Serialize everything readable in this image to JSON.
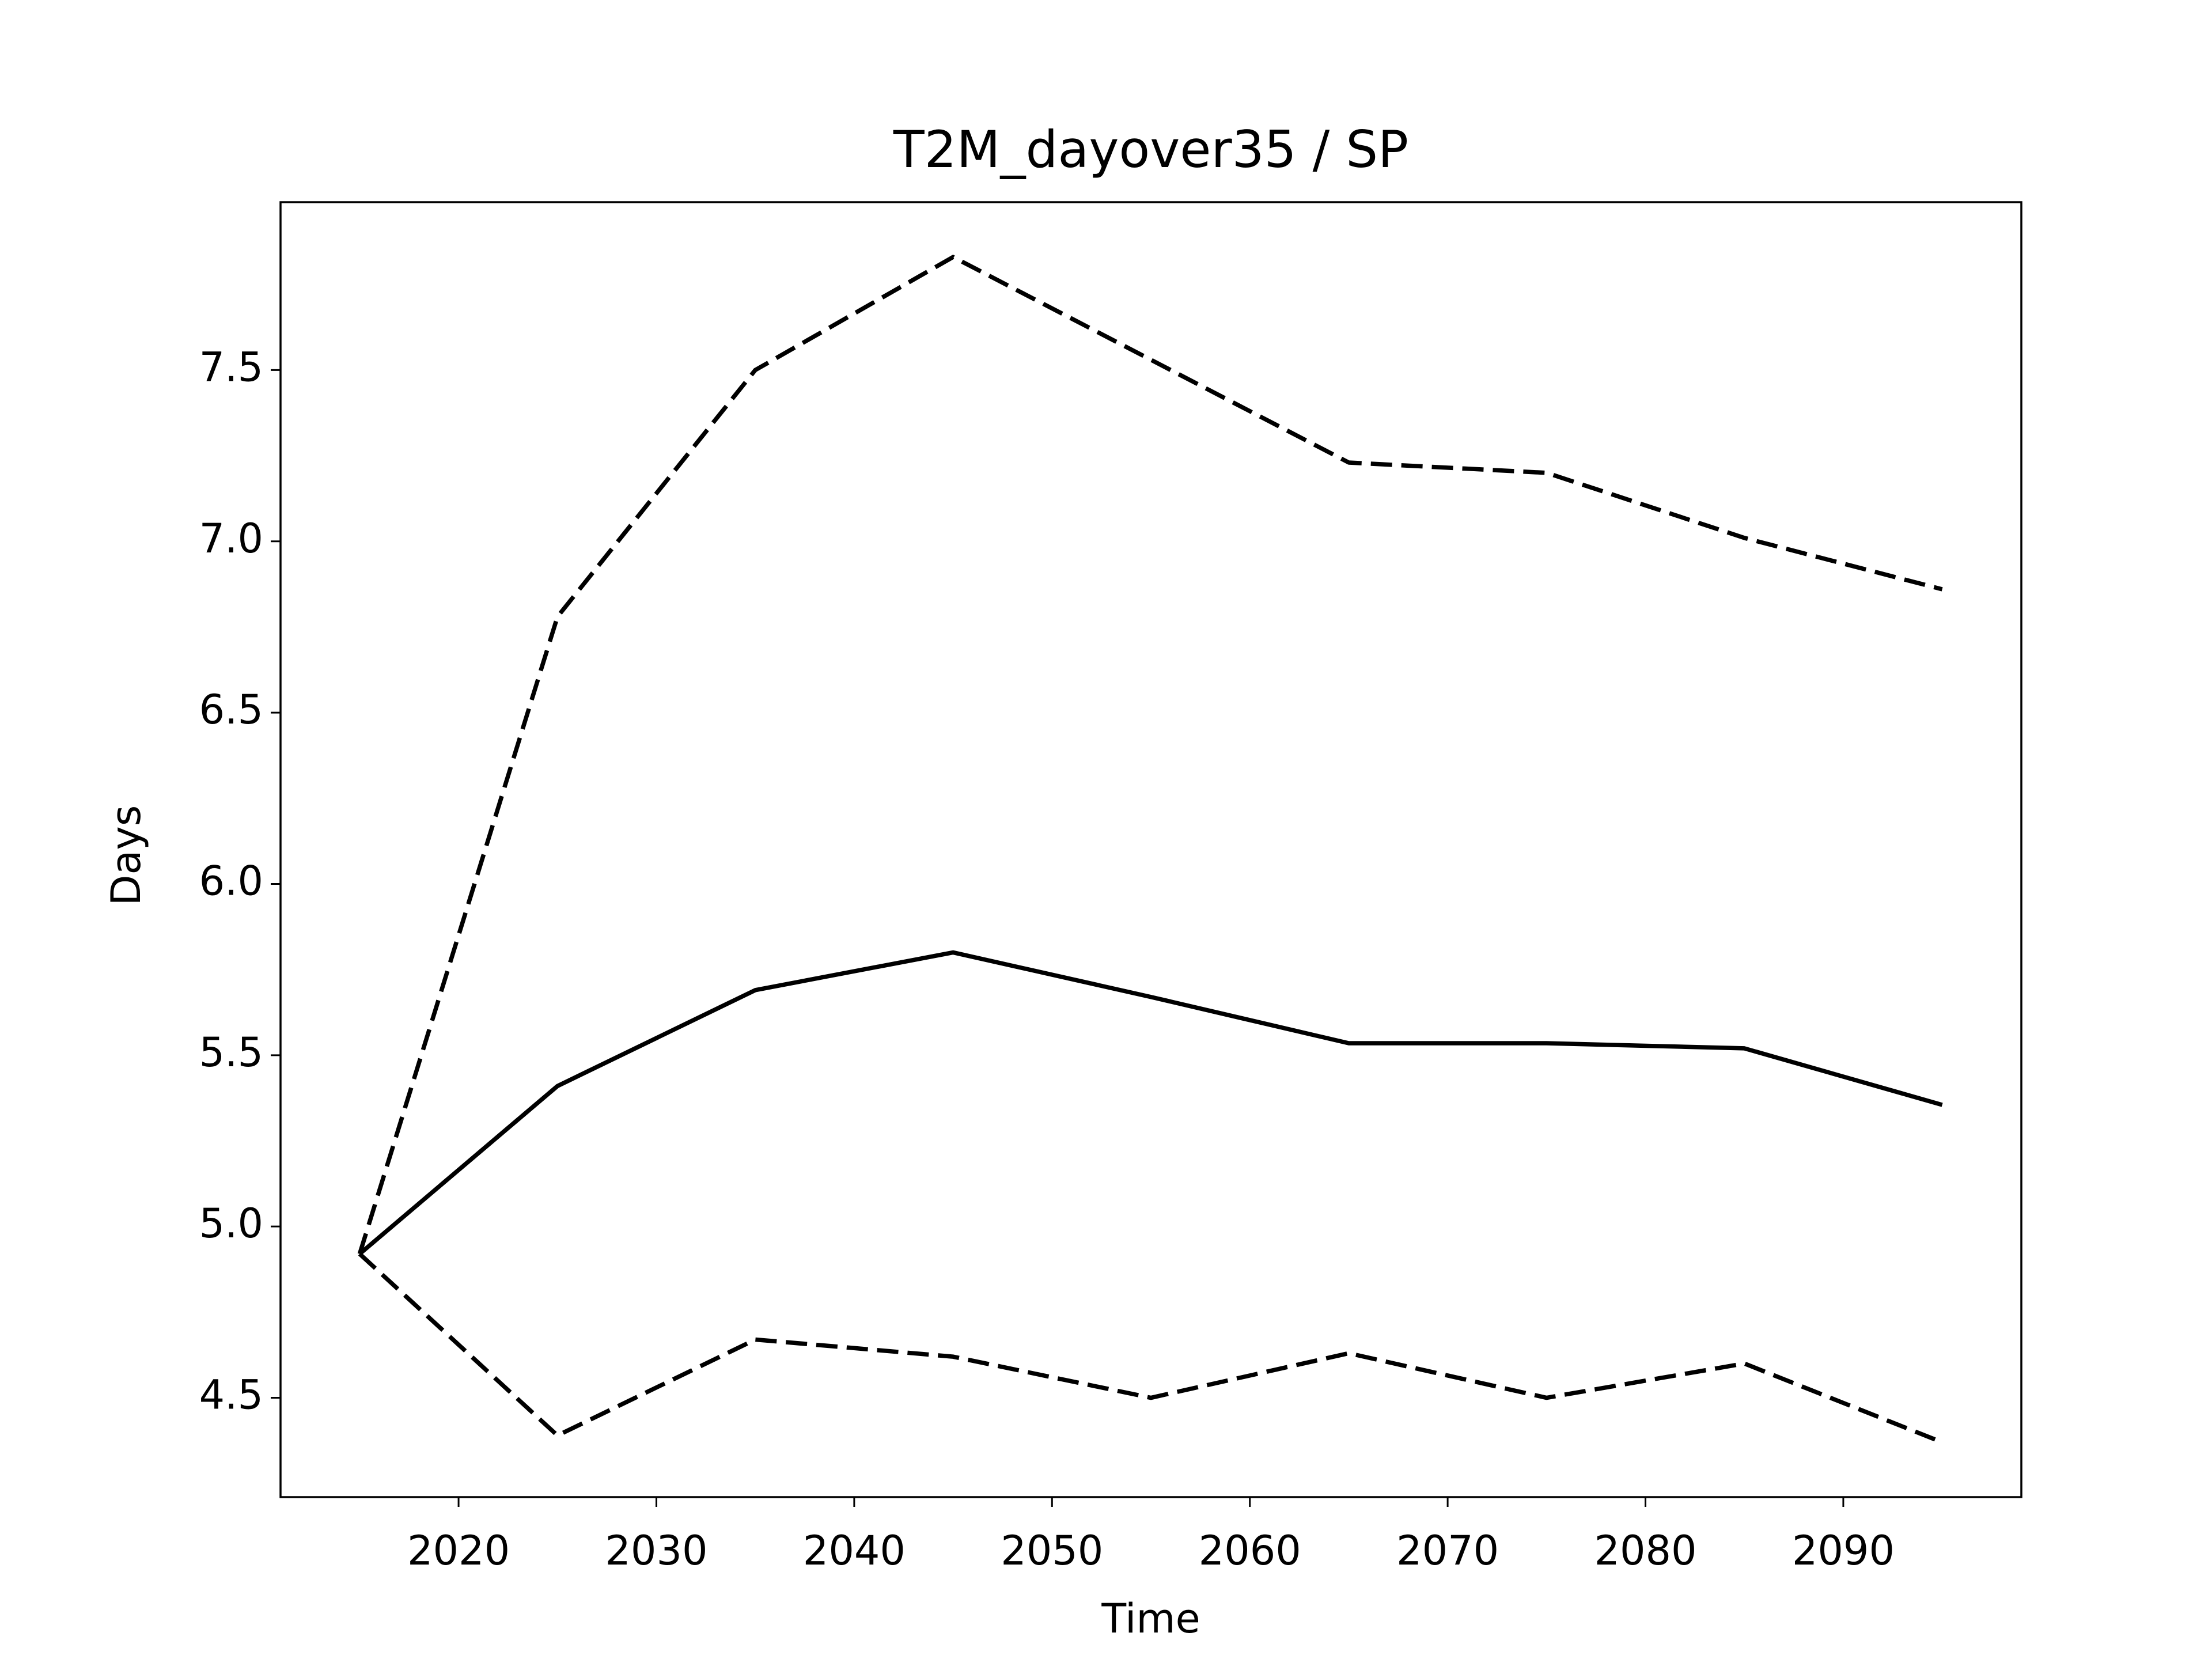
{
  "chart_data": {
    "type": "line",
    "title": "T2M_dayover35 / SP",
    "x_label": "Time",
    "y_label": "Days",
    "x": [
      2015,
      2025,
      2035,
      2045,
      2055,
      2065,
      2075,
      2085,
      2095
    ],
    "series": [
      {
        "color": "#000000",
        "linestyle": "solid",
        "values": [
          4.92,
          5.41,
          5.69,
          5.8,
          5.67,
          5.535,
          5.535,
          5.52,
          5.355
        ]
      },
      {
        "color": "#000000",
        "linestyle": "dashed",
        "values": [
          4.92,
          6.78,
          7.5,
          7.83,
          7.53,
          7.23,
          7.2,
          7.01,
          6.86
        ]
      },
      {
        "color": "#000000",
        "linestyle": "dashed",
        "values": [
          4.92,
          4.39,
          4.67,
          4.62,
          4.5,
          4.63,
          4.5,
          4.6,
          4.37
        ]
      }
    ],
    "xlim": [
      2011,
      2099
    ],
    "xticks": [
      2020,
      2030,
      2040,
      2050,
      2060,
      2070,
      2080,
      2090
    ],
    "ylim": [
      4.21,
      7.99
    ],
    "yticks": [
      4.5,
      {
        "value": 5.0,
        "label": "5.0"
      },
      5.5,
      {
        "value": 6.0,
        "label": "6.0"
      },
      6.5,
      {
        "value": 7.0,
        "label": "7.0"
      },
      7.5
    ],
    "grid": false
  }
}
